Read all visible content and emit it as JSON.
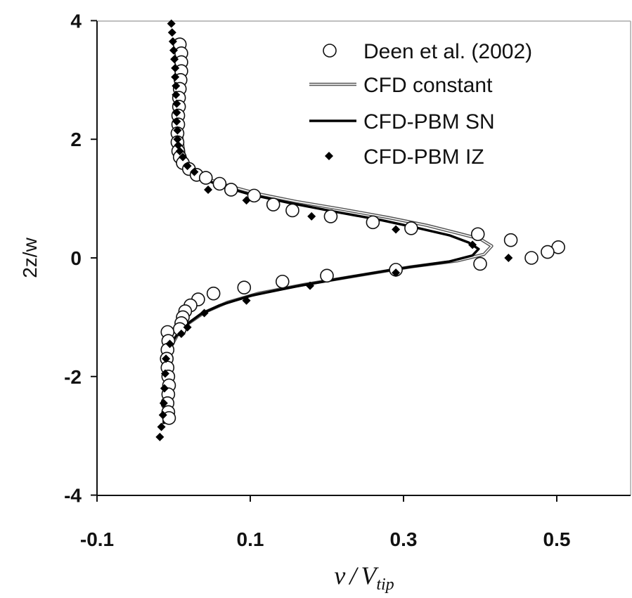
{
  "chart_data": {
    "type": "scatter",
    "xlabel": {
      "base": "v",
      "sep": "/",
      "v": "V",
      "sub": "tip"
    },
    "ylabel": "2z/w",
    "xlim": [
      -0.1,
      0.6
    ],
    "ylim": [
      -4,
      4
    ],
    "x_ticks": [
      -0.1,
      0.1,
      0.3,
      0.5
    ],
    "x_tick_labels": [
      "-0.1",
      "0.1",
      "0.3",
      "0.5"
    ],
    "y_ticks": [
      4,
      2,
      0,
      -2,
      -4
    ],
    "y_tick_labels": [
      "4",
      "2",
      "0",
      "-2",
      "-4"
    ],
    "grid": false,
    "legend_position": "top-right",
    "series": [
      {
        "name": "Deen et al. (2002)",
        "marker": "open-circle",
        "color": "#111111",
        "points": [
          [
            0.008,
            3.6
          ],
          [
            0.01,
            3.45
          ],
          [
            0.01,
            3.3
          ],
          [
            0.01,
            3.15
          ],
          [
            0.009,
            3.0
          ],
          [
            0.008,
            2.85
          ],
          [
            0.007,
            2.7
          ],
          [
            0.007,
            2.55
          ],
          [
            0.006,
            2.4
          ],
          [
            0.006,
            2.25
          ],
          [
            0.005,
            2.1
          ],
          [
            0.005,
            1.95
          ],
          [
            0.006,
            1.8
          ],
          [
            0.008,
            1.7
          ],
          [
            0.012,
            1.6
          ],
          [
            0.02,
            1.5
          ],
          [
            0.03,
            1.4
          ],
          [
            0.042,
            1.35
          ],
          [
            0.06,
            1.25
          ],
          [
            0.075,
            1.15
          ],
          [
            0.105,
            1.05
          ],
          [
            0.13,
            0.9
          ],
          [
            0.155,
            0.8
          ],
          [
            0.205,
            0.7
          ],
          [
            0.26,
            0.6
          ],
          [
            0.31,
            0.5
          ],
          [
            0.397,
            0.4
          ],
          [
            0.44,
            0.3
          ],
          [
            0.502,
            0.18
          ],
          [
            0.488,
            0.1
          ],
          [
            0.467,
            0.0
          ],
          [
            0.4,
            -0.1
          ],
          [
            0.29,
            -0.2
          ],
          [
            0.2,
            -0.3
          ],
          [
            0.142,
            -0.4
          ],
          [
            0.092,
            -0.5
          ],
          [
            0.052,
            -0.6
          ],
          [
            0.032,
            -0.7
          ],
          [
            0.022,
            -0.8
          ],
          [
            0.015,
            -0.9
          ],
          [
            0.012,
            -1.0
          ],
          [
            0.01,
            -1.1
          ],
          [
            0.008,
            -1.2
          ],
          [
            -0.008,
            -1.25
          ],
          [
            -0.007,
            -1.4
          ],
          [
            -0.008,
            -1.55
          ],
          [
            -0.009,
            -1.7
          ],
          [
            -0.008,
            -1.85
          ],
          [
            -0.007,
            -2.0
          ],
          [
            -0.006,
            -2.15
          ],
          [
            -0.007,
            -2.3
          ],
          [
            -0.008,
            -2.45
          ],
          [
            -0.007,
            -2.6
          ],
          [
            -0.006,
            -2.7
          ]
        ]
      },
      {
        "name": "CFD constant",
        "style": "thin-line",
        "color": "#777777",
        "points": [
          [
            0.007,
            3.7
          ],
          [
            0.008,
            3.0
          ],
          [
            0.009,
            2.4
          ],
          [
            0.011,
            2.0
          ],
          [
            0.014,
            1.7
          ],
          [
            0.022,
            1.5
          ],
          [
            0.04,
            1.35
          ],
          [
            0.07,
            1.22
          ],
          [
            0.11,
            1.08
          ],
          [
            0.16,
            0.95
          ],
          [
            0.22,
            0.82
          ],
          [
            0.28,
            0.68
          ],
          [
            0.33,
            0.55
          ],
          [
            0.37,
            0.42
          ],
          [
            0.4,
            0.32
          ],
          [
            0.415,
            0.2
          ],
          [
            0.405,
            0.06
          ],
          [
            0.37,
            -0.05
          ],
          [
            0.31,
            -0.15
          ],
          [
            0.24,
            -0.3
          ],
          [
            0.17,
            -0.45
          ],
          [
            0.11,
            -0.6
          ],
          [
            0.07,
            -0.75
          ],
          [
            0.04,
            -0.92
          ],
          [
            0.02,
            -1.1
          ],
          [
            0.005,
            -1.3
          ],
          [
            -0.008,
            -1.6
          ],
          [
            -0.01,
            -2.2
          ],
          [
            -0.01,
            -2.8
          ]
        ]
      },
      {
        "name": "CFD-PBM SN",
        "style": "thick-line",
        "color": "#000000",
        "points": [
          [
            0.004,
            3.7
          ],
          [
            0.005,
            3.0
          ],
          [
            0.006,
            2.4
          ],
          [
            0.008,
            2.0
          ],
          [
            0.011,
            1.7
          ],
          [
            0.018,
            1.5
          ],
          [
            0.035,
            1.35
          ],
          [
            0.065,
            1.2
          ],
          [
            0.1,
            1.07
          ],
          [
            0.15,
            0.93
          ],
          [
            0.21,
            0.78
          ],
          [
            0.27,
            0.64
          ],
          [
            0.32,
            0.5
          ],
          [
            0.36,
            0.38
          ],
          [
            0.385,
            0.26
          ],
          [
            0.398,
            0.15
          ],
          [
            0.39,
            0.04
          ],
          [
            0.36,
            -0.06
          ],
          [
            0.3,
            -0.17
          ],
          [
            0.23,
            -0.32
          ],
          [
            0.16,
            -0.48
          ],
          [
            0.1,
            -0.64
          ],
          [
            0.06,
            -0.8
          ],
          [
            0.035,
            -0.95
          ],
          [
            0.017,
            -1.12
          ],
          [
            0.003,
            -1.32
          ],
          [
            -0.01,
            -1.6
          ],
          [
            -0.012,
            -2.2
          ],
          [
            -0.013,
            -2.8
          ]
        ]
      },
      {
        "name": "CFD-PBM IZ",
        "marker": "filled-diamond",
        "color": "#000000",
        "points": [
          [
            -0.003,
            3.95
          ],
          [
            -0.002,
            3.8
          ],
          [
            -0.001,
            3.65
          ],
          [
            0.0,
            3.5
          ],
          [
            0.001,
            3.35
          ],
          [
            0.002,
            3.2
          ],
          [
            0.002,
            3.05
          ],
          [
            0.003,
            2.9
          ],
          [
            0.003,
            2.75
          ],
          [
            0.004,
            2.6
          ],
          [
            0.004,
            2.45
          ],
          [
            0.004,
            2.3
          ],
          [
            0.005,
            2.15
          ],
          [
            0.005,
            2.0
          ],
          [
            0.006,
            1.9
          ],
          [
            0.008,
            1.8
          ],
          [
            0.012,
            1.7
          ],
          [
            0.018,
            1.55
          ],
          [
            0.027,
            1.45
          ],
          [
            0.045,
            1.15
          ],
          [
            0.095,
            0.97
          ],
          [
            0.18,
            0.7
          ],
          [
            0.29,
            0.48
          ],
          [
            0.39,
            0.22
          ],
          [
            0.437,
            0.0
          ],
          [
            0.29,
            -0.25
          ],
          [
            0.178,
            -0.47
          ],
          [
            0.095,
            -0.72
          ],
          [
            0.04,
            -0.93
          ],
          [
            0.018,
            -1.17
          ],
          [
            0.01,
            -1.28
          ],
          [
            -0.005,
            -1.45
          ],
          [
            -0.01,
            -1.7
          ],
          [
            -0.011,
            -1.95
          ],
          [
            -0.012,
            -2.2
          ],
          [
            -0.013,
            -2.45
          ],
          [
            -0.014,
            -2.65
          ],
          [
            -0.016,
            -2.85
          ],
          [
            -0.018,
            -3.02
          ]
        ]
      }
    ]
  }
}
